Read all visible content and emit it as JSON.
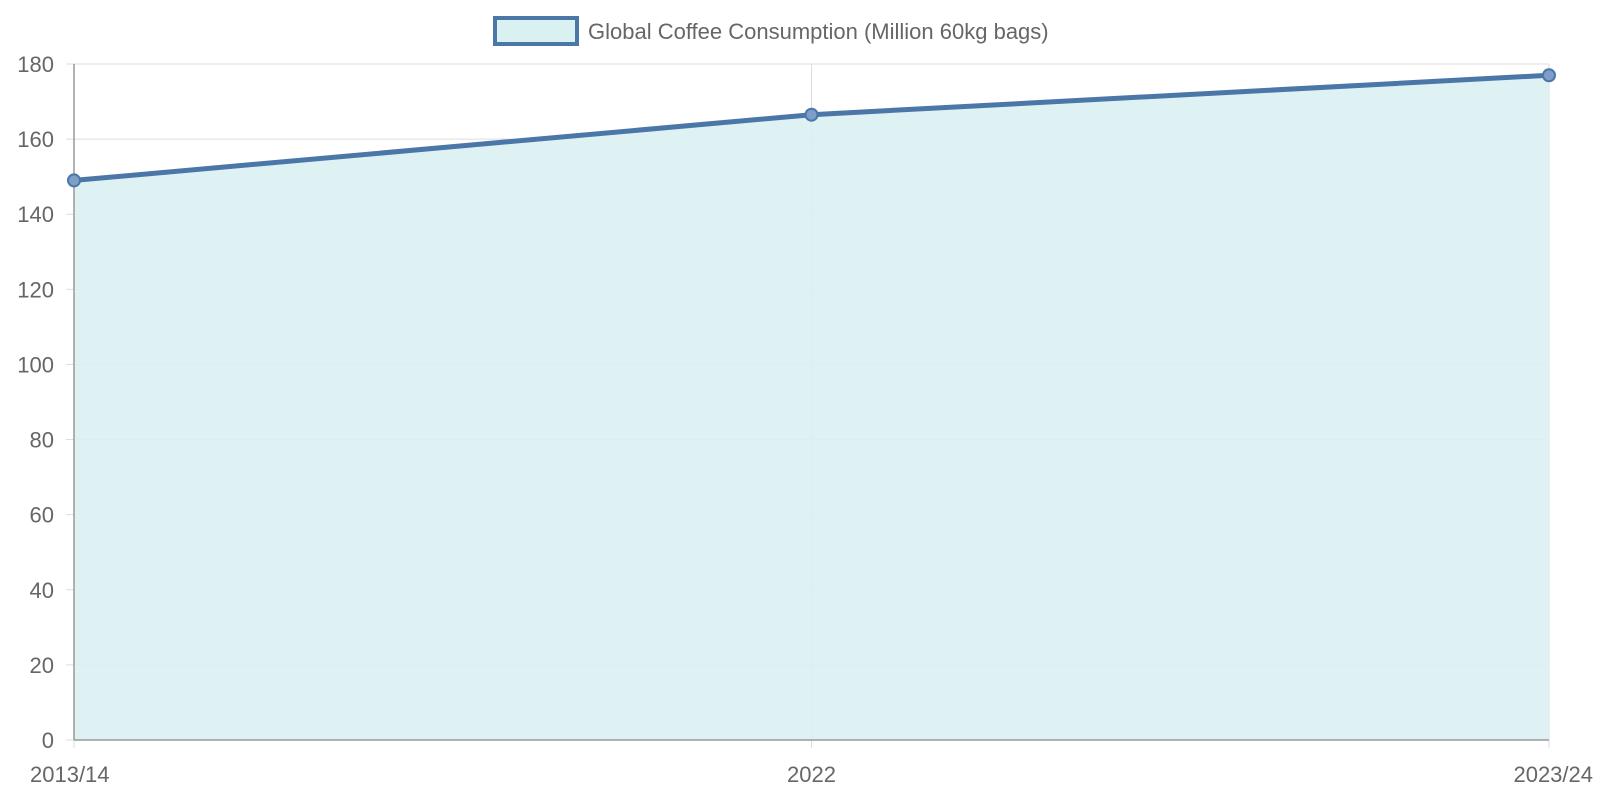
{
  "colors": {
    "line": "#4a76a8",
    "fill": "#daf1f2",
    "grid": "#dddddd",
    "axis": "#999999",
    "text": "#666666"
  },
  "legend": {
    "label": "Global Coffee Consumption (Million 60kg bags)"
  },
  "chart_data": {
    "type": "area",
    "categories": [
      "2013/14",
      "2022",
      "2023/24"
    ],
    "series": [
      {
        "name": "Global Coffee Consumption (Million 60kg bags)",
        "values": [
          149,
          166.5,
          177
        ]
      }
    ],
    "ylim": [
      0,
      180
    ],
    "yticks": [
      0,
      20,
      40,
      60,
      80,
      100,
      120,
      140,
      160,
      180
    ],
    "grid": true,
    "legend_position": "top-center"
  }
}
